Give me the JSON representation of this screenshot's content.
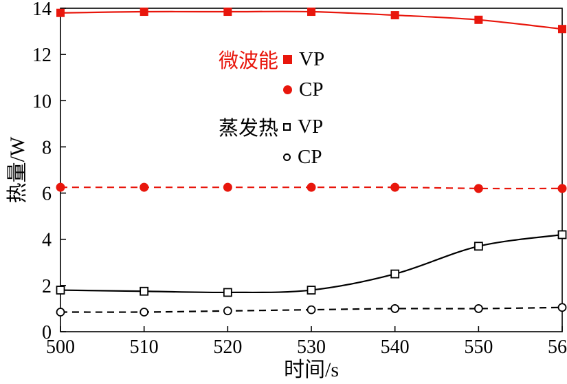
{
  "chart_data": {
    "type": "line",
    "title": "",
    "xlabel": "时间/s",
    "ylabel": "热量/W",
    "xlim": [
      500,
      560
    ],
    "ylim": [
      0,
      14
    ],
    "xticks": [
      500,
      510,
      520,
      530,
      540,
      550,
      560
    ],
    "yticks": [
      0,
      2,
      4,
      6,
      8,
      10,
      12,
      14
    ],
    "grid": false,
    "x": [
      500,
      510,
      520,
      530,
      540,
      550,
      560
    ],
    "series": [
      {
        "id": "microwave-vp",
        "name": "微波能 VP",
        "color": "#e8160c",
        "line": "solid",
        "marker": "square-filled",
        "values": [
          13.8,
          13.85,
          13.85,
          13.85,
          13.7,
          13.5,
          13.1
        ]
      },
      {
        "id": "microwave-cp",
        "name": "微波能 CP",
        "color": "#e8160c",
        "line": "dashed",
        "marker": "circle-filled",
        "values": [
          6.25,
          6.25,
          6.25,
          6.25,
          6.25,
          6.2,
          6.2
        ]
      },
      {
        "id": "evaporation-vp",
        "name": "蒸发热 VP",
        "color": "#000000",
        "line": "solid",
        "marker": "square-open",
        "values": [
          1.8,
          1.75,
          1.7,
          1.8,
          2.5,
          3.7,
          4.2
        ]
      },
      {
        "id": "evaporation-cp",
        "name": "蒸发热 CP",
        "color": "#000000",
        "line": "dashed",
        "marker": "circle-open",
        "values": [
          0.85,
          0.85,
          0.9,
          0.95,
          1.0,
          1.0,
          1.05
        ]
      }
    ],
    "legend": {
      "position": "inside-top-center",
      "groups": [
        {
          "label": "微波能",
          "color": "#e8160c",
          "entries": [
            {
              "marker": "square-filled",
              "color": "#e8160c",
              "text": "VP"
            },
            {
              "marker": "circle-filled",
              "color": "#e8160c",
              "text": "CP"
            }
          ]
        },
        {
          "label": "蒸发热",
          "color": "#000000",
          "entries": [
            {
              "marker": "square-open",
              "color": "#000000",
              "text": "VP"
            },
            {
              "marker": "circle-open",
              "color": "#000000",
              "text": "CP"
            }
          ]
        }
      ]
    }
  }
}
